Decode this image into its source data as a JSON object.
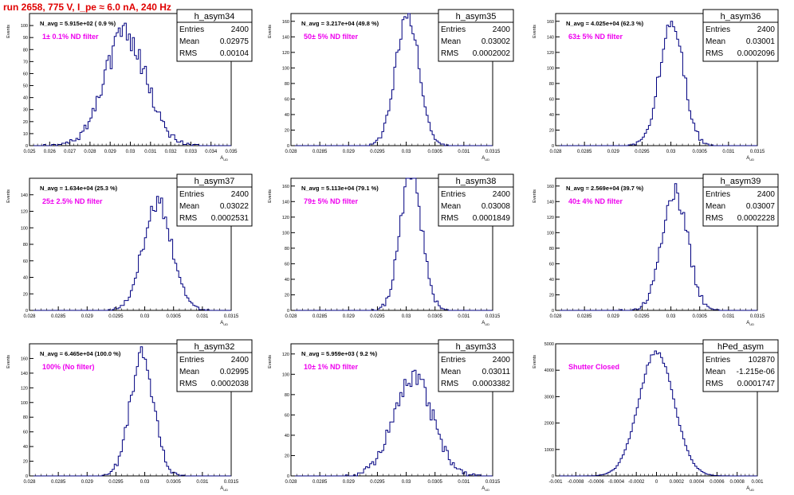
{
  "run_title": "run 2658,   775 V, I_pe ≈ 6.0 nA, 240 Hz",
  "colors": {
    "title": "#e00000",
    "annotation": "#ee00ee",
    "histogram": "#000080",
    "frame": "#000000"
  },
  "stats_labels": {
    "entries": "Entries",
    "mean": "Mean",
    "rms": "RMS"
  },
  "chart_data": [
    {
      "type": "histogram",
      "name": "h_asym34",
      "n_avg": "N_avg = 5.915e+02 ( 0.9 %)",
      "filter": "1± 0.1% ND filter",
      "entries": "2400",
      "mean": "0.02975",
      "rms": "0.00104",
      "xlabel": "A_UD",
      "ylabel": "Events",
      "xlim": [
        0.025,
        0.035
      ],
      "ylim": [
        0,
        110
      ],
      "xticks": [
        "0.025",
        "0.026",
        "0.027",
        "0.028",
        "0.029",
        "0.03",
        "0.031",
        "0.032",
        "0.033",
        "0.034",
        "0.035"
      ],
      "xtick_values": [
        0.025,
        0.026,
        0.027,
        0.028,
        0.029,
        0.03,
        0.031,
        0.032,
        0.033,
        0.034,
        0.035
      ],
      "yticks": [
        0,
        10,
        20,
        30,
        40,
        50,
        60,
        70,
        80,
        90,
        100
      ],
      "bins": {
        "mean": 0.02975,
        "sigma": 0.00104,
        "n": 2400,
        "width": 0.0001,
        "seed": 34
      }
    },
    {
      "type": "histogram",
      "name": "h_asym35",
      "n_avg": "N_avg = 3.217e+04 (49.8 %)",
      "filter": "50± 5% ND filter",
      "entries": "2400",
      "mean": "0.03002",
      "rms": "0.0002002",
      "xlabel": "A_UD",
      "ylabel": "Events",
      "xlim": [
        0.028,
        0.0315
      ],
      "ylim": [
        0,
        170
      ],
      "xticks": [
        "0.028",
        "0.0285",
        "0.029",
        "0.0295",
        "0.03",
        "0.0305",
        "0.031",
        "0.0315"
      ],
      "xtick_values": [
        0.028,
        0.0285,
        0.029,
        0.0295,
        0.03,
        0.0305,
        0.031,
        0.0315
      ],
      "yticks": [
        0,
        20,
        40,
        60,
        80,
        100,
        120,
        140,
        160
      ],
      "bins": {
        "mean": 0.03002,
        "sigma": 0.0002002,
        "n": 2400,
        "width": 3.5e-05,
        "seed": 35
      }
    },
    {
      "type": "histogram",
      "name": "h_asym36",
      "n_avg": "N_avg = 4.025e+04 (62.3 %)",
      "filter": "63± 5% ND filter",
      "entries": "2400",
      "mean": "0.03001",
      "rms": "0.0002096",
      "xlabel": "A_UD",
      "ylabel": "Events",
      "xlim": [
        0.028,
        0.0315
      ],
      "ylim": [
        0,
        170
      ],
      "xticks": [
        "0.028",
        "0.0285",
        "0.029",
        "0.0295",
        "0.03",
        "0.0305",
        "0.031",
        "0.0315"
      ],
      "xtick_values": [
        0.028,
        0.0285,
        0.029,
        0.0295,
        0.03,
        0.0305,
        0.031,
        0.0315
      ],
      "yticks": [
        0,
        20,
        40,
        60,
        80,
        100,
        120,
        140,
        160
      ],
      "bins": {
        "mean": 0.03001,
        "sigma": 0.0002096,
        "n": 2400,
        "width": 3.5e-05,
        "seed": 36
      }
    },
    {
      "type": "histogram",
      "name": "h_asym37",
      "n_avg": "N_avg = 1.634e+04 (25.3 %)",
      "filter": "25± 2.5% ND filter",
      "entries": "2400",
      "mean": "0.03022",
      "rms": "0.0002531",
      "xlabel": "A_UD",
      "ylabel": "Events",
      "xlim": [
        0.028,
        0.0315
      ],
      "ylim": [
        0,
        160
      ],
      "xticks": [
        "0.028",
        "0.0285",
        "0.029",
        "0.0295",
        "0.03",
        "0.0305",
        "0.031",
        "0.0315"
      ],
      "xtick_values": [
        0.028,
        0.0285,
        0.029,
        0.0295,
        0.03,
        0.0305,
        0.031,
        0.0315
      ],
      "yticks": [
        0,
        20,
        40,
        60,
        80,
        100,
        120,
        140
      ],
      "bins": {
        "mean": 0.03022,
        "sigma": 0.0002531,
        "n": 2400,
        "width": 3.5e-05,
        "seed": 37
      }
    },
    {
      "type": "histogram",
      "name": "h_asym38",
      "n_avg": "N_avg = 5.113e+04 (79.1 %)",
      "filter": "79± 5% ND filter",
      "entries": "2400",
      "mean": "0.03008",
      "rms": "0.0001849",
      "xlabel": "A_UD",
      "ylabel": "Events",
      "xlim": [
        0.028,
        0.0315
      ],
      "ylim": [
        0,
        170
      ],
      "xticks": [
        "0.028",
        "0.0285",
        "0.029",
        "0.0295",
        "0.03",
        "0.0305",
        "0.031",
        "0.0315"
      ],
      "xtick_values": [
        0.028,
        0.0285,
        0.029,
        0.0295,
        0.03,
        0.0305,
        0.031,
        0.0315
      ],
      "yticks": [
        0,
        20,
        40,
        60,
        80,
        100,
        120,
        140,
        160
      ],
      "bins": {
        "mean": 0.03008,
        "sigma": 0.0001849,
        "n": 2400,
        "width": 3.5e-05,
        "seed": 38
      }
    },
    {
      "type": "histogram",
      "name": "h_asym39",
      "n_avg": "N_avg = 2.569e+04 (39.7 %)",
      "filter": "40± 4% ND filter",
      "entries": "2400",
      "mean": "0.03007",
      "rms": "0.0002228",
      "xlabel": "A_UD",
      "ylabel": "Events",
      "xlim": [
        0.028,
        0.0315
      ],
      "ylim": [
        0,
        170
      ],
      "xticks": [
        "0.028",
        "0.0285",
        "0.029",
        "0.0295",
        "0.03",
        "0.0305",
        "0.031",
        "0.0315"
      ],
      "xtick_values": [
        0.028,
        0.0285,
        0.029,
        0.0295,
        0.03,
        0.0305,
        0.031,
        0.0315
      ],
      "yticks": [
        0,
        20,
        40,
        60,
        80,
        100,
        120,
        140,
        160
      ],
      "bins": {
        "mean": 0.03007,
        "sigma": 0.0002228,
        "n": 2400,
        "width": 3.5e-05,
        "seed": 39
      }
    },
    {
      "type": "histogram",
      "name": "h_asym32",
      "n_avg": "N_avg = 6.465e+04 (100.0 %)",
      "filter": "100% (No filter)",
      "entries": "2400",
      "mean": "0.02995",
      "rms": "0.0002038",
      "xlabel": "A_UD",
      "ylabel": "Events",
      "xlim": [
        0.028,
        0.0315
      ],
      "ylim": [
        0,
        180
      ],
      "xticks": [
        "0.028",
        "0.0285",
        "0.029",
        "0.0295",
        "0.03",
        "0.0305",
        "0.031",
        "0.0315"
      ],
      "xtick_values": [
        0.028,
        0.0285,
        0.029,
        0.0295,
        0.03,
        0.0305,
        0.031,
        0.0315
      ],
      "yticks": [
        0,
        20,
        40,
        60,
        80,
        100,
        120,
        140,
        160
      ],
      "bins": {
        "mean": 0.02995,
        "sigma": 0.0002038,
        "n": 2400,
        "width": 3.5e-05,
        "seed": 32
      }
    },
    {
      "type": "histogram",
      "name": "h_asym33",
      "n_avg": "N_avg = 5.959e+03 ( 9.2 %)",
      "filter": "10± 1% ND filter",
      "entries": "2400",
      "mean": "0.03011",
      "rms": "0.0003382",
      "xlabel": "A_UD",
      "ylabel": "Events",
      "xlim": [
        0.028,
        0.0315
      ],
      "ylim": [
        0,
        130
      ],
      "xticks": [
        "0.028",
        "0.0285",
        "0.029",
        "0.0295",
        "0.03",
        "0.0305",
        "0.031",
        "0.0315"
      ],
      "xtick_values": [
        0.028,
        0.0285,
        0.029,
        0.0295,
        0.03,
        0.0305,
        0.031,
        0.0315
      ],
      "yticks": [
        0,
        20,
        40,
        60,
        80,
        100,
        120
      ],
      "bins": {
        "mean": 0.03011,
        "sigma": 0.0003382,
        "n": 2400,
        "width": 3.5e-05,
        "seed": 33
      }
    },
    {
      "type": "histogram",
      "name": "hPed_asym",
      "n_avg": "",
      "filter": "Shutter Closed",
      "entries": "102870",
      "mean": "-1.215e-06",
      "rms": "0.0001747",
      "xlabel": "A_UD",
      "ylabel": "Events",
      "xlim": [
        -0.001,
        0.001
      ],
      "ylim": [
        0,
        5000
      ],
      "xticks": [
        "-0.001",
        "-0.0008",
        "-0.0006",
        "-0.0004",
        "-0.0002",
        "0",
        "0.0002",
        "0.0004",
        "0.0006",
        "0.0008",
        "0.001"
      ],
      "xtick_values": [
        -0.001,
        -0.0008,
        -0.0006,
        -0.0004,
        -0.0002,
        0,
        0.0002,
        0.0004,
        0.0006,
        0.0008,
        0.001
      ],
      "yticks": [
        0,
        1000,
        2000,
        3000,
        4000,
        5000
      ],
      "bins": {
        "mean": -1.215e-06,
        "sigma": 0.0001747,
        "n": 102870,
        "width": 2e-05,
        "seed": 99
      }
    }
  ]
}
